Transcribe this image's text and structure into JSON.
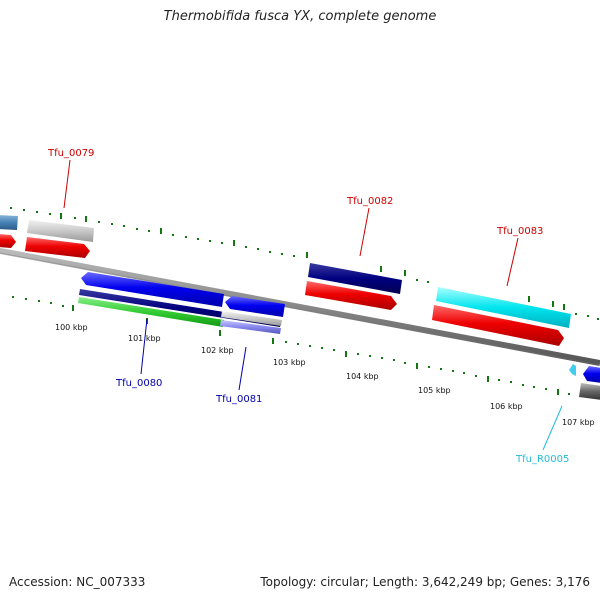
{
  "title": "Thermobifida fusca YX, complete genome",
  "footer": {
    "accession": "Accession: NC_007333",
    "summary": "Topology: circular; Length: 3,642,249 bp; Genes: 3,176"
  },
  "colors": {
    "gene_label_forward": "#cc0000",
    "gene_label_reverse": "#0000aa",
    "rna_label": "#22bbdd",
    "cds_red": "#ee0000",
    "tick_green": "#117711",
    "backbone_gray": "#888888"
  },
  "ticks": [
    {
      "label": "100 kbp"
    },
    {
      "label": "101 kbp"
    },
    {
      "label": "102 kbp"
    },
    {
      "label": "103 kbp"
    },
    {
      "label": "104 kbp"
    },
    {
      "label": "105 kbp"
    },
    {
      "label": "106 kbp"
    },
    {
      "label": "107 kbp"
    }
  ],
  "gene_labels": [
    {
      "name": "Tfu_0079",
      "strand": "forward"
    },
    {
      "name": "Tfu_0082",
      "strand": "forward"
    },
    {
      "name": "Tfu_0083",
      "strand": "forward"
    },
    {
      "name": "Tfu_0080",
      "strand": "reverse"
    },
    {
      "name": "Tfu_0081",
      "strand": "reverse"
    },
    {
      "name": "Tfu_R0005",
      "strand": "rna"
    }
  ]
}
